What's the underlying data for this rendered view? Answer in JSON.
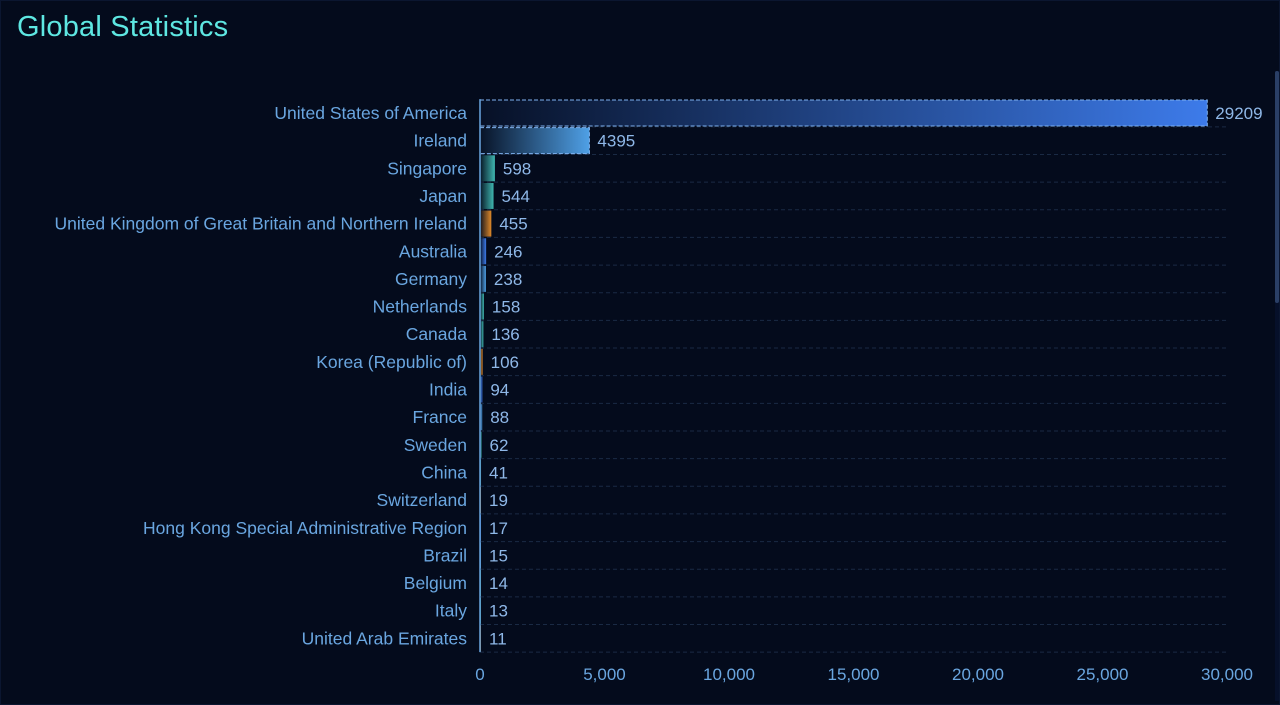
{
  "header": {
    "title": "Global Statistics"
  },
  "colors": {
    "background": "#040b1c",
    "title": "#5ee7e2",
    "label": "#6aa6e0",
    "gridline": "#1a2a44",
    "axis": "#6aa6e0",
    "bar_blue": "#3d7bea",
    "bar_light_blue": "#4fa0e6",
    "bar_teal": "#3fb6b0",
    "bar_orange": "#e08a2a"
  },
  "chart_data": {
    "type": "bar",
    "orientation": "horizontal",
    "title": "Global Statistics",
    "xlim": [
      0,
      30000
    ],
    "x_ticks": [
      0,
      5000,
      10000,
      15000,
      20000,
      25000,
      30000
    ],
    "x_tick_labels": [
      "0",
      "5,000",
      "10,000",
      "15,000",
      "20,000",
      "25,000",
      "30,000"
    ],
    "grid": true,
    "categories": [
      "United States of America",
      "Ireland",
      "Singapore",
      "Japan",
      "United Kingdom of Great Britain and Northern Ireland",
      "Australia",
      "Germany",
      "Netherlands",
      "Canada",
      "Korea (Republic of)",
      "India",
      "France",
      "Sweden",
      "China",
      "Switzerland",
      "Hong Kong Special Administrative Region",
      "Brazil",
      "Belgium",
      "Italy",
      "United Arab Emirates"
    ],
    "values": [
      29209,
      4395,
      598,
      544,
      455,
      246,
      238,
      158,
      136,
      106,
      94,
      88,
      62,
      41,
      19,
      17,
      15,
      14,
      13,
      11
    ],
    "value_labels": [
      "29209",
      "4395",
      "598",
      "544",
      "455",
      "246",
      "238",
      "158",
      "136",
      "106",
      "94",
      "88",
      "62",
      "41",
      "19",
      "17",
      "15",
      "14",
      "13",
      "11"
    ],
    "bar_colors": [
      "#3d7bea",
      "#4fa0e6",
      "#3fb6b0",
      "#3fb6b0",
      "#e08a2a",
      "#3d7bea",
      "#4fa0e6",
      "#3fb6b0",
      "#3fb6b0",
      "#e08a2a",
      "#3d7bea",
      "#4fa0e6",
      "#3fb6b0",
      "#3fb6b0",
      "#e08a2a",
      "#3d7bea",
      "#4fa0e6",
      "#3fb6b0",
      "#3fb6b0",
      "#e08a2a"
    ]
  }
}
